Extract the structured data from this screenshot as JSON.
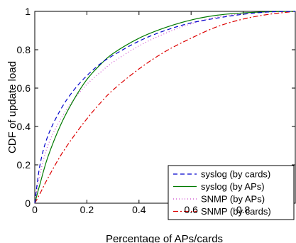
{
  "chart_data": {
    "type": "line",
    "title": "",
    "xlabel": "Percentage of APs/cards",
    "ylabel": "CDF of update load",
    "xlim": [
      0,
      1
    ],
    "ylim": [
      0,
      1
    ],
    "xticks": [
      0,
      0.2,
      0.4,
      0.6,
      0.8
    ],
    "xtick_labels": [
      "0",
      "0.2",
      "0.4",
      "0.6",
      "0.8"
    ],
    "yticks": [
      0,
      0.2,
      0.4,
      0.6,
      0.8,
      1
    ],
    "ytick_labels": [
      "0",
      "0.2",
      "0.4",
      "0.6",
      "0.8",
      "1"
    ],
    "grid": false,
    "legend_position": "bottom-right",
    "x": [
      0,
      0.02,
      0.05,
      0.1,
      0.15,
      0.2,
      0.25,
      0.3,
      0.4,
      0.5,
      0.6,
      0.7,
      0.8,
      0.9,
      1.0
    ],
    "series": [
      {
        "name": "syslog (by cards)",
        "color": "#0000cc",
        "dash": "6 4",
        "values": [
          0.0,
          0.2,
          0.35,
          0.49,
          0.59,
          0.665,
          0.725,
          0.77,
          0.845,
          0.9,
          0.94,
          0.965,
          0.985,
          0.997,
          1.0
        ]
      },
      {
        "name": "syslog (by APs)",
        "color": "#007a00",
        "dash": "",
        "values": [
          0.0,
          0.1,
          0.24,
          0.41,
          0.54,
          0.645,
          0.72,
          0.78,
          0.86,
          0.915,
          0.955,
          0.98,
          0.992,
          0.998,
          1.0
        ]
      },
      {
        "name": "SNMP (by APs)",
        "color": "#cc44cc",
        "dash": "1 3",
        "values": [
          0.0,
          0.15,
          0.3,
          0.44,
          0.54,
          0.62,
          0.68,
          0.735,
          0.82,
          0.885,
          0.935,
          0.97,
          0.988,
          0.997,
          1.0
        ]
      },
      {
        "name": "SNMP (by cards)",
        "color": "#dd0000",
        "dash": "7 3 2 3",
        "values": [
          0.0,
          0.05,
          0.13,
          0.25,
          0.35,
          0.44,
          0.52,
          0.59,
          0.7,
          0.79,
          0.86,
          0.92,
          0.96,
          0.985,
          1.0
        ]
      }
    ]
  }
}
